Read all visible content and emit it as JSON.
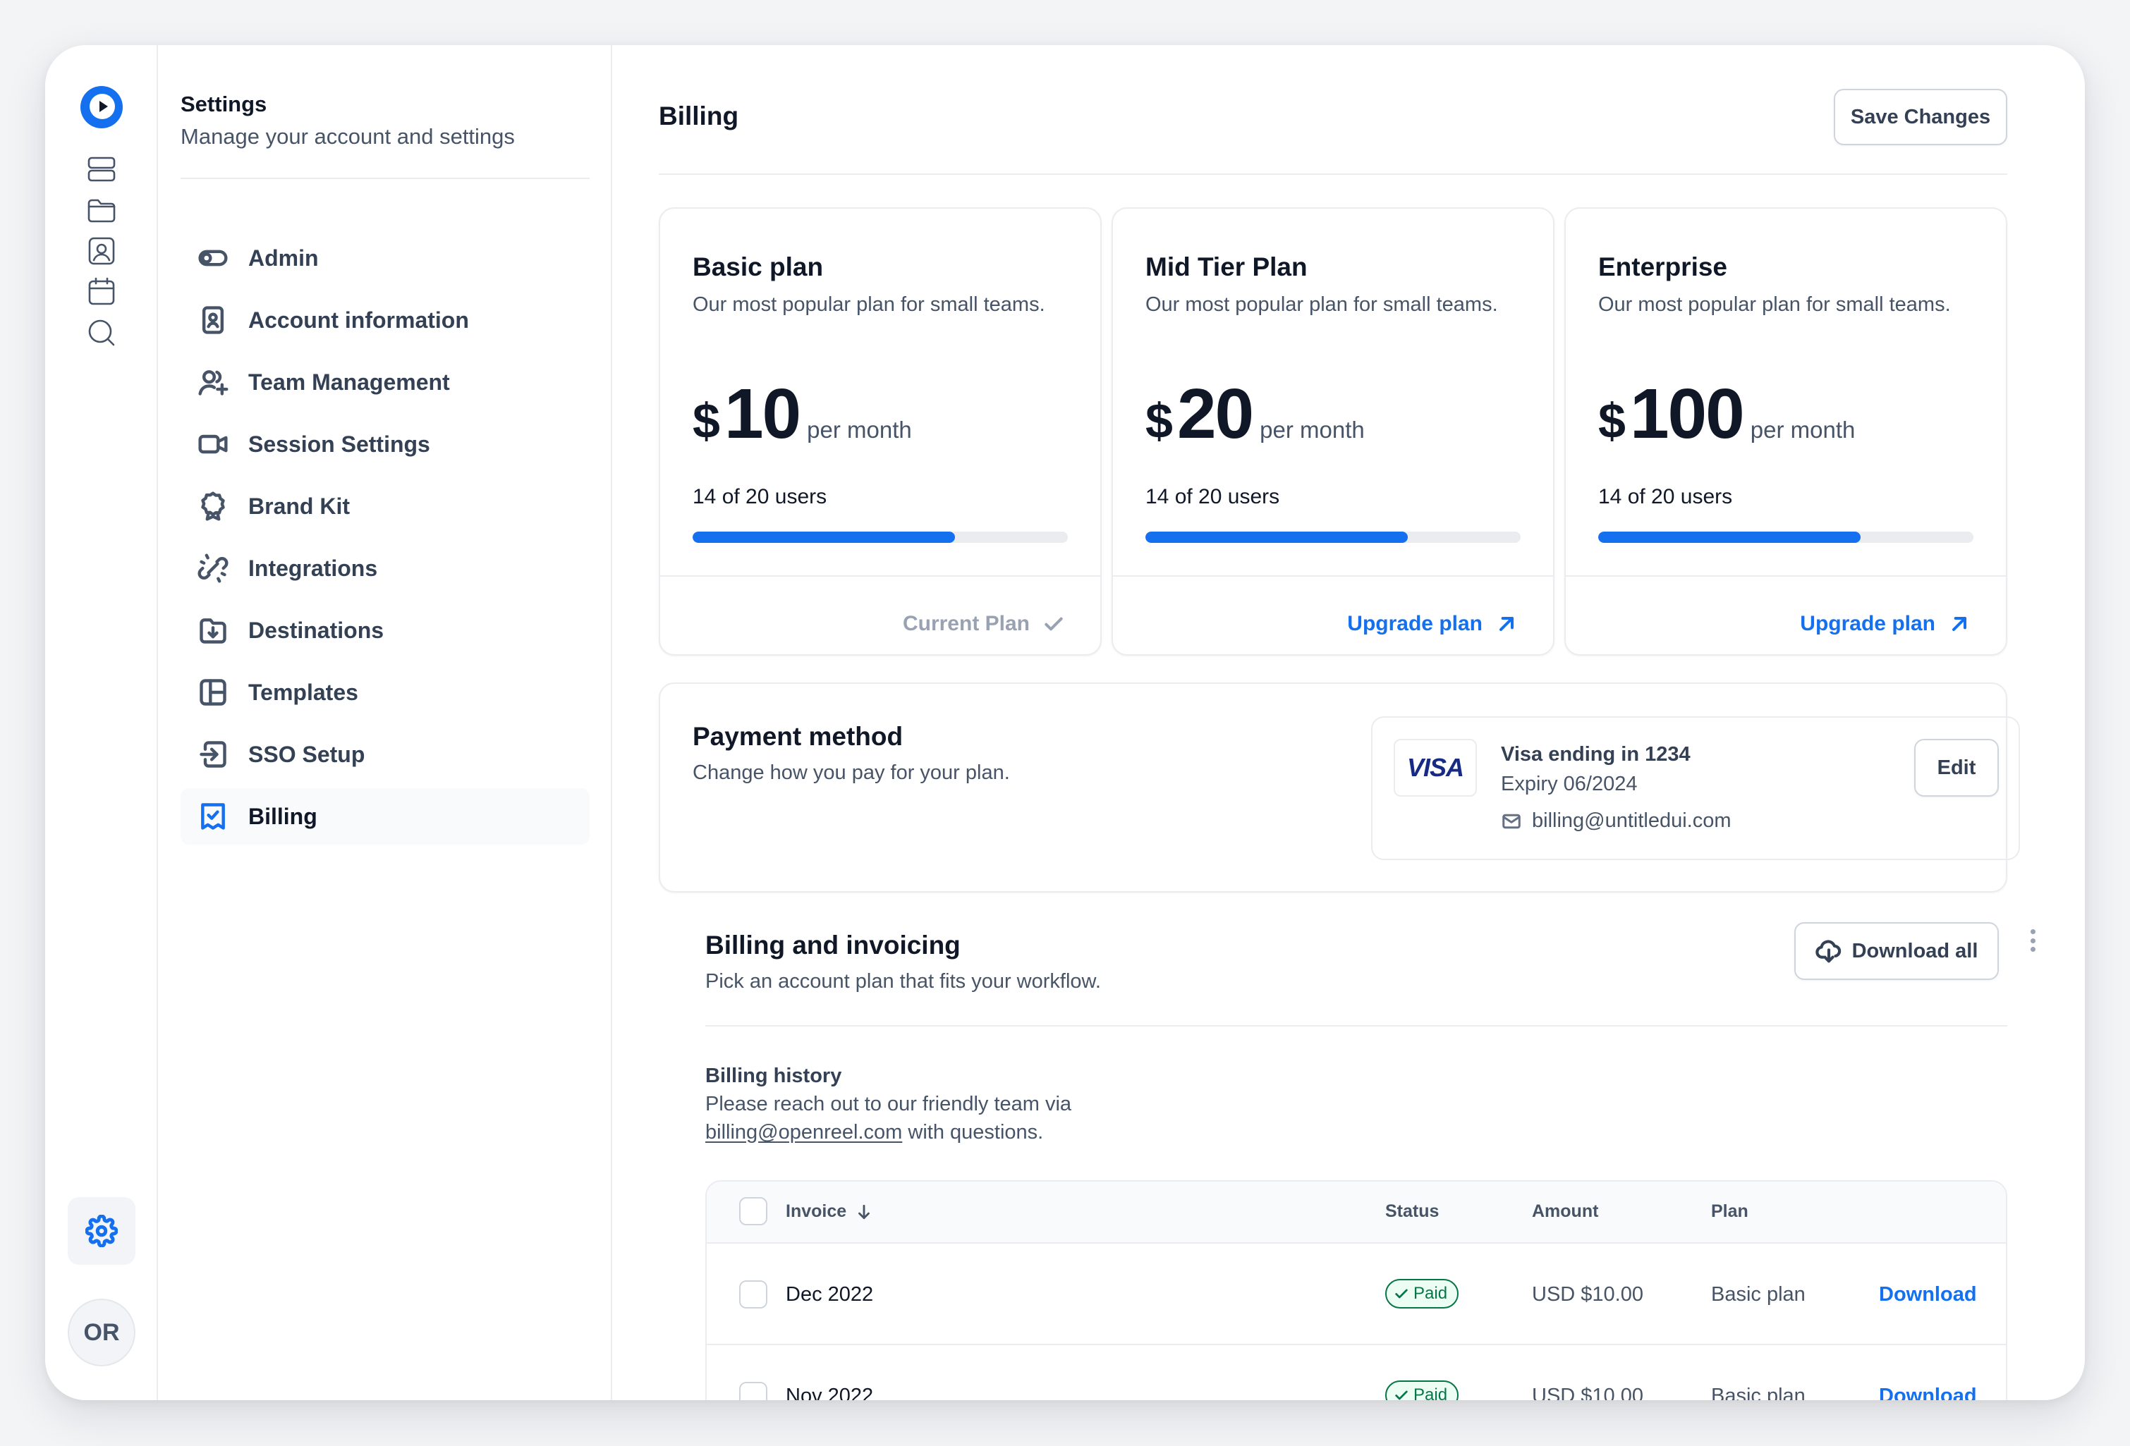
{
  "settings_nav": {
    "title": "Settings",
    "subtitle": "Manage your account and settings",
    "items": [
      {
        "label": "Admin"
      },
      {
        "label": "Account information"
      },
      {
        "label": "Team Management"
      },
      {
        "label": "Session Settings"
      },
      {
        "label": "Brand Kit"
      },
      {
        "label": "Integrations"
      },
      {
        "label": "Destinations"
      },
      {
        "label": "Templates"
      },
      {
        "label": "SSO Setup"
      },
      {
        "label": "Billing",
        "active": true
      }
    ]
  },
  "rail": {
    "icons": [
      "logo-icon",
      "layers-icon",
      "folder-icon",
      "contact-icon",
      "calendar-icon",
      "search-icon",
      "gear-icon"
    ],
    "avatar_initials": "OR"
  },
  "header": {
    "title": "Billing",
    "save_label": "Save Changes"
  },
  "plans": [
    {
      "name": "Basic plan",
      "description": "Our most popular plan for small teams.",
      "currency": "$",
      "price": "10",
      "period": "per month",
      "users_text": "14 of 20 users",
      "usage_fraction": 0.7,
      "action": "Current Plan",
      "current": true
    },
    {
      "name": "Mid Tier Plan",
      "description": "Our most popular plan for small teams.",
      "currency": "$",
      "price": "20",
      "period": "per month",
      "users_text": "14 of 20 users",
      "usage_fraction": 0.7,
      "action": "Upgrade plan",
      "current": false
    },
    {
      "name": "Enterprise",
      "description": "Our most popular plan for small teams.",
      "currency": "$",
      "price": "100",
      "period": "per month",
      "users_text": "14 of 20 users",
      "usage_fraction": 0.7,
      "action": "Upgrade plan",
      "current": false
    }
  ],
  "payment": {
    "title": "Payment method",
    "subtitle": "Change how you pay for your plan.",
    "card_brand": "VISA",
    "card_name": "Visa ending in 1234",
    "expiry": "Expiry 06/2024",
    "email": "billing@untitledui.com",
    "edit_label": "Edit"
  },
  "invoicing": {
    "title": "Billing and invoicing",
    "subtitle": "Pick an account plan that fits your workflow.",
    "download_all_label": "Download all",
    "history_title": "Billing history",
    "history_text_1": "Please reach out to our friendly team via",
    "history_email": "billing@openreel.com",
    "history_text_2": " with questions."
  },
  "table": {
    "columns": {
      "invoice": "Invoice",
      "status": "Status",
      "amount": "Amount",
      "plan": "Plan"
    },
    "rows": [
      {
        "invoice": "Dec 2022",
        "status": "Paid",
        "amount": "USD $10.00",
        "plan": "Basic plan",
        "action": "Download"
      },
      {
        "invoice": "Nov 2022",
        "status": "Paid",
        "amount": "USD $10.00",
        "plan": "Basic plan",
        "action": "Download"
      }
    ]
  },
  "colors": {
    "accent": "#1570ef",
    "success": "#067647",
    "text_primary": "#101828",
    "text_secondary": "#475467",
    "border": "#eaecf0"
  }
}
